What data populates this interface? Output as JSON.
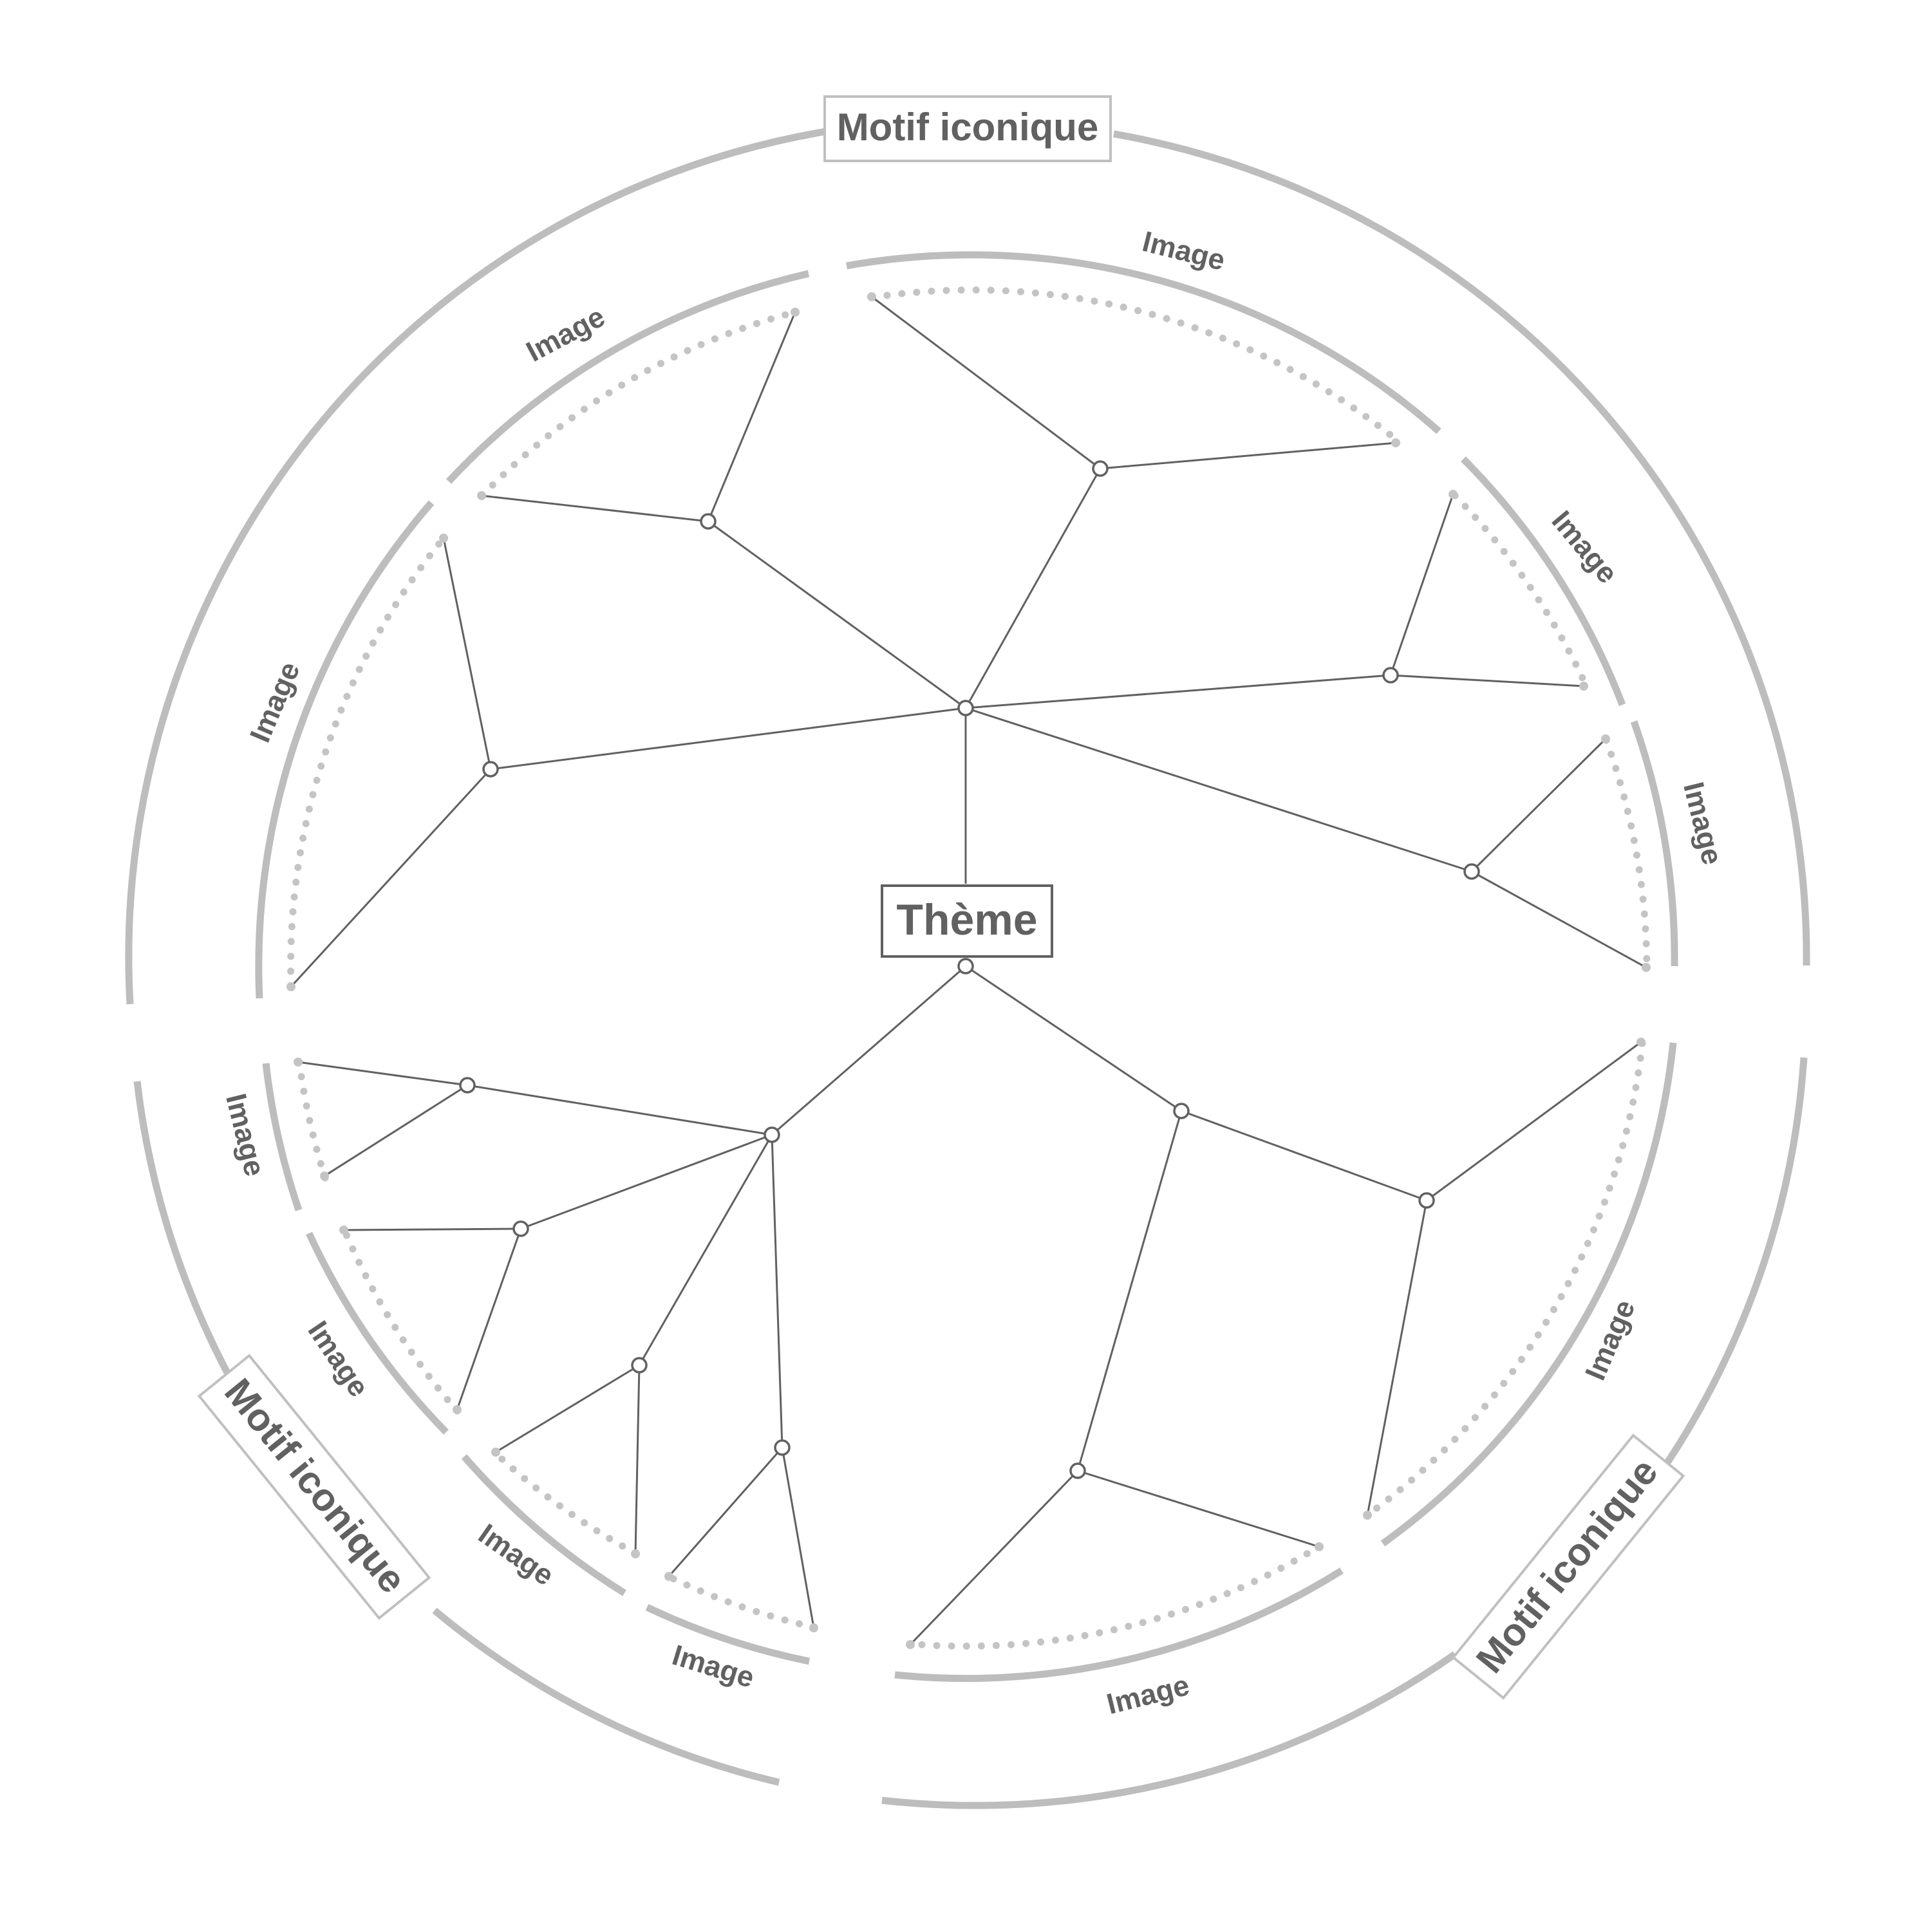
{
  "diagram": {
    "theme": {
      "label": "Thème"
    },
    "motifs": [
      {
        "label": "Motif iconique"
      },
      {
        "label": "Motif iconique"
      },
      {
        "label": "Motif iconique"
      }
    ],
    "images": [
      {
        "label": "Image"
      },
      {
        "label": "Image"
      },
      {
        "label": "Image"
      },
      {
        "label": "Image"
      },
      {
        "label": "Image"
      },
      {
        "label": "Image"
      },
      {
        "label": "Image"
      },
      {
        "label": "Image"
      },
      {
        "label": "Image"
      },
      {
        "label": "Image"
      }
    ]
  }
}
